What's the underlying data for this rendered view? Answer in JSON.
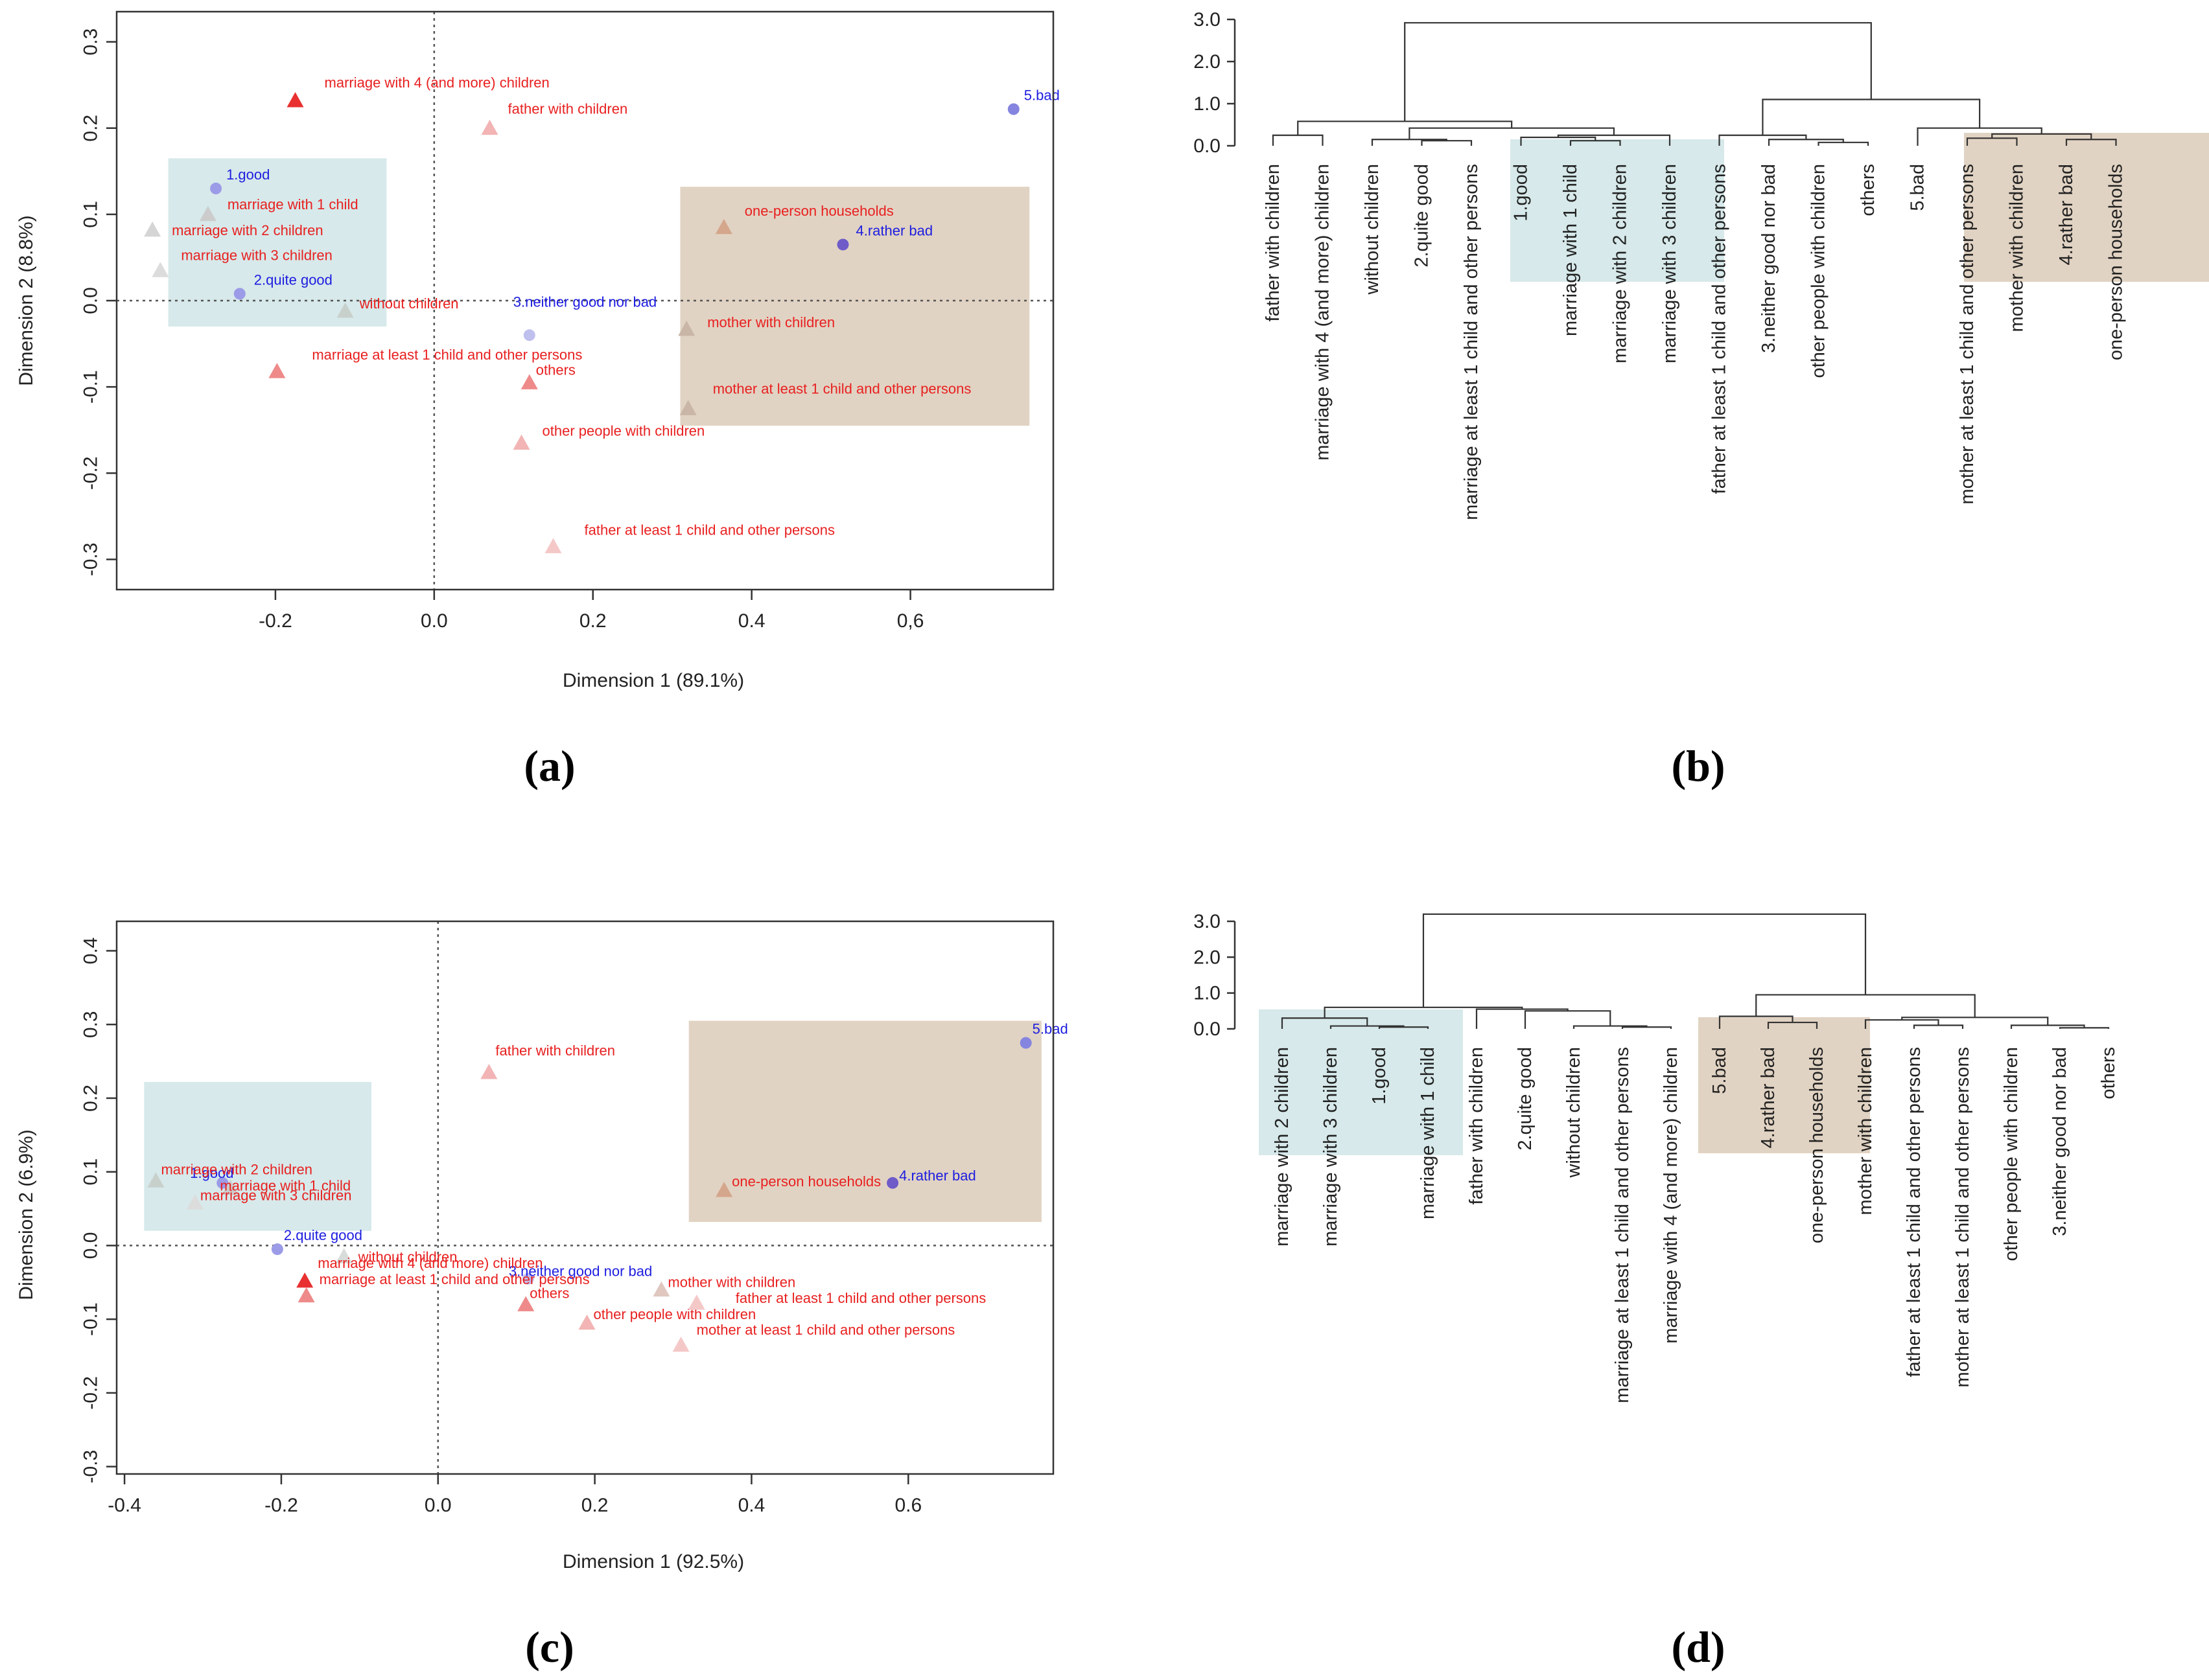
{
  "panels": {
    "a": "(a)",
    "b": "(b)",
    "c": "(c)",
    "d": "(d)"
  },
  "chart_data": [
    {
      "id": "a",
      "type": "scatter",
      "xlabel": "Dimension 1 (89.1%)",
      "ylabel": "Dimension 2 (8.8%)",
      "xlim": [
        -0.4,
        0.78
      ],
      "ylim": [
        -0.335,
        0.335
      ],
      "xticks": [
        "-0.2",
        "0.0",
        "0.2",
        "0.4",
        "0,6"
      ],
      "xtick_values": [
        -0.2,
        0.0,
        0.2,
        0.4,
        0.6
      ],
      "yticks": [
        "-0.3",
        "-0.2",
        "-0.1",
        "0.0",
        "0.1",
        "0.2",
        "0.3"
      ],
      "ytick_values": [
        -0.3,
        -0.2,
        -0.1,
        0.0,
        0.1,
        0.2,
        0.3
      ],
      "highlight_regions": [
        {
          "x": [
            -0.335,
            -0.06
          ],
          "y": [
            -0.03,
            0.165
          ],
          "color": "#d7e9ea"
        },
        {
          "x": [
            0.31,
            0.75
          ],
          "y": [
            -0.145,
            0.132
          ],
          "color": "#e1d3c3"
        }
      ],
      "points": [
        {
          "label": "1.good",
          "x": -0.275,
          "y": 0.13,
          "marker": "circle",
          "color": "#9b9be8",
          "text_color": "#1d1de0"
        },
        {
          "label": "2.quite good",
          "x": -0.245,
          "y": 0.008,
          "marker": "circle",
          "color": "#9b9be8",
          "text_color": "#1d1de0"
        },
        {
          "label": "3.neither good nor bad",
          "x": 0.12,
          "y": -0.04,
          "marker": "circle",
          "color": "#c0c0ee",
          "text_color": "#1d1de0"
        },
        {
          "label": "4.rather bad",
          "x": 0.515,
          "y": 0.065,
          "marker": "circle",
          "color": "#6f5cc8",
          "text_color": "#1d1de0"
        },
        {
          "label": "5.bad",
          "x": 0.73,
          "y": 0.222,
          "marker": "circle",
          "color": "#8585e0",
          "text_color": "#1d1de0"
        },
        {
          "label": "marriage with 4 (and more) children",
          "x": -0.175,
          "y": 0.232,
          "marker": "triangle",
          "color": "#e83030",
          "text_color": "#e82020"
        },
        {
          "label": "father with children",
          "x": 0.07,
          "y": 0.2,
          "marker": "triangle",
          "color": "#f2b4b4",
          "text_color": "#e82020"
        },
        {
          "label": "marriage with 1 child",
          "x": -0.285,
          "y": 0.1,
          "marker": "triangle",
          "color": "#cccccc",
          "text_color": "#e82020"
        },
        {
          "label": "marriage with 2 children",
          "x": -0.355,
          "y": 0.082,
          "marker": "triangle",
          "color": "#d5d5d5",
          "text_color": "#e82020"
        },
        {
          "label": "marriage with 3 children",
          "x": -0.345,
          "y": 0.035,
          "marker": "triangle",
          "color": "#dcdcdc",
          "text_color": "#e82020"
        },
        {
          "label": "without children",
          "x": -0.112,
          "y": -0.012,
          "marker": "triangle",
          "color": "#c8d0cc",
          "text_color": "#e82020"
        },
        {
          "label": "one-person households",
          "x": 0.365,
          "y": 0.085,
          "marker": "triangle",
          "color": "#d4a68c",
          "text_color": "#e82020"
        },
        {
          "label": "mother with children",
          "x": 0.318,
          "y": -0.033,
          "marker": "triangle",
          "color": "#c9b6a6",
          "text_color": "#e82020"
        },
        {
          "label": "marriage at least 1 child and other persons",
          "x": -0.198,
          "y": -0.082,
          "marker": "triangle",
          "color": "#ef8a8a",
          "text_color": "#e82020"
        },
        {
          "label": "others",
          "x": 0.12,
          "y": -0.095,
          "marker": "triangle",
          "color": "#ef8a8a",
          "text_color": "#e82020"
        },
        {
          "label": "mother at least 1 child and other persons",
          "x": 0.32,
          "y": -0.125,
          "marker": "triangle",
          "color": "#c9b6a6",
          "text_color": "#e82020"
        },
        {
          "label": "other people with children",
          "x": 0.11,
          "y": -0.165,
          "marker": "triangle",
          "color": "#f2b4b4",
          "text_color": "#e82020"
        },
        {
          "label": "father at least 1 child and other persons",
          "x": 0.15,
          "y": -0.285,
          "marker": "triangle",
          "color": "#f5c8c8",
          "text_color": "#e82020"
        }
      ]
    },
    {
      "id": "b",
      "type": "dendrogram",
      "ylim": [
        0,
        3.0
      ],
      "yticks": [
        "0.0",
        "1.0",
        "2.0",
        "3.0"
      ],
      "ytick_values": [
        0,
        1,
        2,
        3
      ],
      "leaves": [
        "father with children",
        "marriage with 4 (and more) children",
        "without children",
        "2.quite good",
        "marriage at least 1 child and other persons",
        "1.good",
        "marriage with 1 child",
        "marriage with 2 children",
        "marriage with 3 children",
        "father at least 1 child and other persons",
        "3.neither good nor bad",
        "other people with children",
        "others",
        "5.bad",
        "mother at least 1 child and other persons",
        "mother with children",
        "4.rather bad",
        "one-person households"
      ],
      "merges": [
        {
          "id": "m1",
          "a": "L3",
          "b": "L4",
          "h": 0.12
        },
        {
          "id": "m2",
          "a": "L2",
          "b": "m1",
          "h": 0.15
        },
        {
          "id": "m3",
          "a": "L0",
          "b": "L1",
          "h": 0.25
        },
        {
          "id": "m4",
          "a": "L6",
          "b": "L7",
          "h": 0.12
        },
        {
          "id": "m5",
          "a": "L5",
          "b": "m4",
          "h": 0.2
        },
        {
          "id": "m6",
          "a": "m5",
          "b": "L8",
          "h": 0.25
        },
        {
          "id": "m7",
          "a": "m2",
          "b": "m6",
          "h": 0.42
        },
        {
          "id": "m8",
          "a": "m3",
          "b": "m7",
          "h": 0.58
        },
        {
          "id": "m9",
          "a": "L11",
          "b": "L12",
          "h": 0.08
        },
        {
          "id": "m10",
          "a": "L10",
          "b": "m9",
          "h": 0.15
        },
        {
          "id": "m11",
          "a": "L9",
          "b": "m10",
          "h": 0.25
        },
        {
          "id": "m12",
          "a": "L16",
          "b": "L17",
          "h": 0.15
        },
        {
          "id": "m13",
          "a": "L14",
          "b": "L15",
          "h": 0.18
        },
        {
          "id": "m14",
          "a": "m13",
          "b": "m12",
          "h": 0.28
        },
        {
          "id": "m15",
          "a": "L13",
          "b": "m14",
          "h": 0.42
        },
        {
          "id": "m16",
          "a": "m11",
          "b": "m15",
          "h": 1.1
        },
        {
          "id": "m17",
          "a": "m8",
          "b": "m16",
          "h": 2.92
        }
      ],
      "highlight_groups": [
        {
          "from": 5,
          "to": 8,
          "color": "#d7e9ea"
        },
        {
          "from": 14,
          "to": 17,
          "color": "#e1d3c3"
        }
      ]
    },
    {
      "id": "c",
      "type": "scatter",
      "xlabel": "Dimension 1 (92.5%)",
      "ylabel": "Dimension 2 (6.9%)",
      "xlim": [
        -0.41,
        0.785
      ],
      "ylim": [
        -0.31,
        0.44
      ],
      "xticks": [
        "-0.4",
        "-0.2",
        "0.0",
        "0.2",
        "0.4",
        "0.6"
      ],
      "xtick_values": [
        -0.4,
        -0.2,
        0.0,
        0.2,
        0.4,
        0.6
      ],
      "yticks": [
        "-0.3",
        "-0.2",
        "-0.1",
        "0.0",
        "0.1",
        "0.2",
        "0.3",
        "0.4"
      ],
      "ytick_values": [
        -0.3,
        -0.2,
        -0.1,
        0.0,
        0.1,
        0.2,
        0.3,
        0.4
      ],
      "highlight_regions": [
        {
          "x": [
            -0.375,
            -0.085
          ],
          "y": [
            0.02,
            0.222
          ],
          "color": "#d7e9ea"
        },
        {
          "x": [
            0.32,
            0.77
          ],
          "y": [
            0.032,
            0.305
          ],
          "color": "#e1d3c3"
        }
      ],
      "points": [
        {
          "label": "5.bad",
          "x": 0.75,
          "y": 0.275,
          "marker": "circle",
          "color": "#8585e0",
          "text_color": "#1d1de0"
        },
        {
          "label": "4.rather bad",
          "x": 0.58,
          "y": 0.085,
          "marker": "circle",
          "color": "#6f5cc8",
          "text_color": "#1d1de0"
        },
        {
          "label": "1.good",
          "x": -0.275,
          "y": 0.085,
          "marker": "circle",
          "color": "#9b9be8",
          "text_color": "#1d1de0"
        },
        {
          "label": "2.quite good",
          "x": -0.205,
          "y": -0.005,
          "marker": "circle",
          "color": "#9b9be8",
          "text_color": "#1d1de0"
        },
        {
          "label": "3.neither good nor bad",
          "x": 0.115,
          "y": -0.045,
          "marker": "circle",
          "color": "#c0c0ee",
          "text_color": "#1d1de0"
        },
        {
          "label": "father with children",
          "x": 0.065,
          "y": 0.235,
          "marker": "triangle",
          "color": "#f2b4b4",
          "text_color": "#e82020"
        },
        {
          "label": "marriage with 2 children",
          "x": -0.36,
          "y": 0.088,
          "marker": "triangle",
          "color": "#c8d0cc",
          "text_color": "#e82020"
        },
        {
          "label": "marriage with 1 child",
          "x": -0.265,
          "y": 0.078,
          "marker": "triangle",
          "color": "#cccccc",
          "text_color": "#e82020"
        },
        {
          "label": "marriage with 3 children",
          "x": -0.31,
          "y": 0.058,
          "marker": "triangle",
          "color": "#dcdcdc",
          "text_color": "#e82020"
        },
        {
          "label": "one-person households",
          "x": 0.365,
          "y": 0.075,
          "marker": "triangle",
          "color": "#d4a68c",
          "text_color": "#e82020"
        },
        {
          "label": "without children",
          "x": -0.12,
          "y": -0.015,
          "marker": "triangle",
          "color": "#d8dcda",
          "text_color": "#e82020"
        },
        {
          "label": "marriage with 4 (and more) children",
          "x": -0.17,
          "y": -0.048,
          "marker": "triangle",
          "color": "#e83030",
          "text_color": "#e82020"
        },
        {
          "label": "marriage at least 1 child and other persons",
          "x": -0.168,
          "y": -0.068,
          "marker": "triangle",
          "color": "#ef8a8a",
          "text_color": "#e82020"
        },
        {
          "label": "others",
          "x": 0.112,
          "y": -0.08,
          "marker": "triangle",
          "color": "#ef8a8a",
          "text_color": "#e82020"
        },
        {
          "label": "mother with children",
          "x": 0.285,
          "y": -0.06,
          "marker": "triangle",
          "color": "#e0c8c0",
          "text_color": "#e82020"
        },
        {
          "label": "other people with children",
          "x": 0.19,
          "y": -0.105,
          "marker": "triangle",
          "color": "#f2b4b4",
          "text_color": "#e82020"
        },
        {
          "label": "father at least 1 child and other persons",
          "x": 0.33,
          "y": -0.078,
          "marker": "triangle",
          "color": "#f5c8c8",
          "text_color": "#e82020"
        },
        {
          "label": "mother at least 1 child and other persons",
          "x": 0.31,
          "y": -0.135,
          "marker": "triangle",
          "color": "#f5c8c8",
          "text_color": "#e82020"
        }
      ]
    },
    {
      "id": "d",
      "type": "dendrogram",
      "ylim": [
        0,
        3.0
      ],
      "yticks": [
        "0.0",
        "1.0",
        "2.0",
        "3.0"
      ],
      "ytick_values": [
        0,
        1,
        2,
        3
      ],
      "leaves": [
        "marriage with 2 children",
        "marriage with 3 children",
        "1.good",
        "marriage with 1 child",
        "father with children",
        "2.quite good",
        "without children",
        "marriage at least 1 child and other persons",
        "marriage with 4 (and more) children",
        "5.bad",
        "4.rather bad",
        "one-person households",
        "mother with children",
        "father at least 1 child and other persons",
        "mother at least 1 child and other persons",
        "other people with children",
        "3.neither good nor bad",
        "others"
      ],
      "merges": [
        {
          "id": "m1",
          "a": "L2",
          "b": "L3",
          "h": 0.05
        },
        {
          "id": "m2",
          "a": "L1",
          "b": "m1",
          "h": 0.08
        },
        {
          "id": "m3",
          "a": "L0",
          "b": "m2",
          "h": 0.3
        },
        {
          "id": "m4",
          "a": "L7",
          "b": "L8",
          "h": 0.05
        },
        {
          "id": "m5",
          "a": "L6",
          "b": "m4",
          "h": 0.08
        },
        {
          "id": "m6",
          "a": "L5",
          "b": "m5",
          "h": 0.5
        },
        {
          "id": "m7",
          "a": "L4",
          "b": "m6",
          "h": 0.55
        },
        {
          "id": "m8",
          "a": "m3",
          "b": "m7",
          "h": 0.6
        },
        {
          "id": "m9",
          "a": "L10",
          "b": "L11",
          "h": 0.18
        },
        {
          "id": "m10",
          "a": "L9",
          "b": "m9",
          "h": 0.35
        },
        {
          "id": "m11",
          "a": "L13",
          "b": "L14",
          "h": 0.1
        },
        {
          "id": "m12",
          "a": "L12",
          "b": "m11",
          "h": 0.25
        },
        {
          "id": "m13",
          "a": "L16",
          "b": "L17",
          "h": 0.03
        },
        {
          "id": "m14",
          "a": "L15",
          "b": "m13",
          "h": 0.1
        },
        {
          "id": "m15",
          "a": "m12",
          "b": "m14",
          "h": 0.32
        },
        {
          "id": "m16",
          "a": "m10",
          "b": "m15",
          "h": 0.95
        },
        {
          "id": "m17",
          "a": "m16",
          "b": "m16",
          "h": 0.95
        },
        {
          "id": "m18",
          "a": "m8",
          "b": "m16",
          "h": 3.2
        }
      ],
      "highlight_groups": [
        {
          "from": 0,
          "to": 3,
          "color": "#d7e9ea"
        },
        {
          "from": 9,
          "to": 11,
          "color": "#e1d3c3"
        }
      ]
    }
  ]
}
